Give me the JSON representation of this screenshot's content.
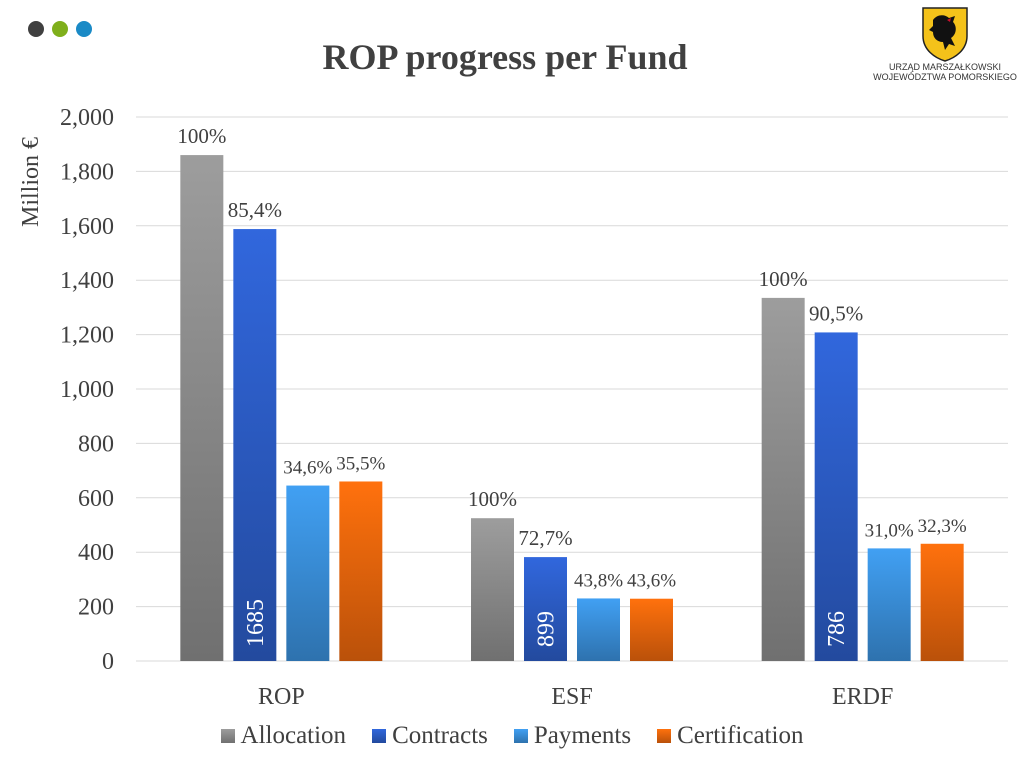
{
  "header": {
    "dots": [
      "#404040",
      "#7FAF1B",
      "#1A8AC6"
    ],
    "title": "ROP progress per Fund"
  },
  "logo": {
    "emblem": "griffin-emblem",
    "line1": "URZĄD MARSZAŁKOWSKI",
    "line2": "WOJEWÓDZTWA POMORSKIEGO"
  },
  "chart_data": {
    "type": "bar",
    "title": "ROP progress per Fund",
    "xlabel": "",
    "ylabel": "Million €",
    "ylim": [
      0,
      2000
    ],
    "yticks": [
      0,
      200,
      400,
      600,
      800,
      1000,
      1200,
      1400,
      1600,
      1800,
      2000
    ],
    "ytick_labels": [
      "0",
      "200",
      "400",
      "600",
      "800",
      "1,000",
      "1,200",
      "1,400",
      "1,600",
      "1,800",
      "2,000"
    ],
    "grid": true,
    "legend_position": "bottom",
    "categories": [
      "ROP",
      "ESF",
      "ERDF"
    ],
    "series": [
      {
        "name": "Allocation",
        "color": "#8C8C8C",
        "values": [
          1860,
          525,
          1335
        ],
        "labels": [
          "100%",
          "100%",
          "100%"
        ]
      },
      {
        "name": "Contracts",
        "color": "#2C5CC5",
        "values": [
          1588,
          382,
          1208
        ],
        "labels": [
          "85,4%",
          "72,7%",
          "90,5%"
        ]
      },
      {
        "name": "Payments",
        "color": "#3A8FD9",
        "values": [
          645,
          230,
          414
        ],
        "labels": [
          "34,6%",
          "43,8%",
          "31,0%"
        ]
      },
      {
        "name": "Certification",
        "color": "#E8650C",
        "values": [
          660,
          229,
          431
        ],
        "labels": [
          "35,5%",
          "43,6%",
          "32,3%"
        ]
      }
    ],
    "inner_labels": {
      "series": "Contracts",
      "values": [
        "1685",
        "899",
        "786"
      ]
    }
  }
}
